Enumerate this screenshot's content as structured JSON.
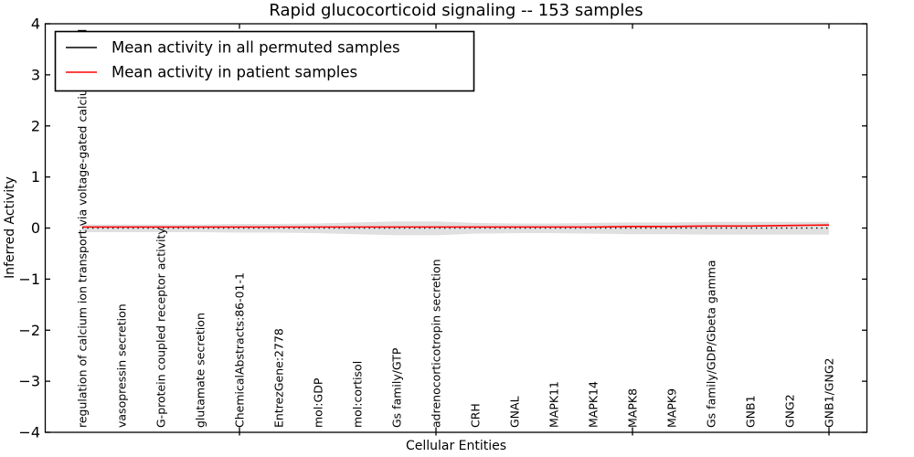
{
  "chart_data": {
    "type": "line",
    "title": "Rapid glucocorticoid signaling -- 153 samples",
    "xlabel": "Cellular Entities",
    "ylabel": "Inferred Activity",
    "ylim": [
      -4,
      4
    ],
    "y_ticks": [
      -4,
      -3,
      -2,
      -1,
      0,
      1,
      2,
      3,
      4
    ],
    "x_major_tick_indices": [
      4,
      9,
      14,
      19
    ],
    "grid": false,
    "legend_position": "upper left",
    "categories": [
      "regulation of calcium ion transport via voltage-gated calcium channel",
      "vasopressin secretion",
      "G-protein coupled receptor activity",
      "glutamate secretion",
      "ChemicalAbstracts:86-01-1",
      "EntrezGene:2778",
      "mol:GDP",
      "mol:cortisol",
      "Gs family/GTP",
      "adrenocorticotropin secretion",
      "CRH",
      "GNAL",
      "MAPK11",
      "MAPK14",
      "MAPK8",
      "MAPK9",
      "Gs family/GDP/Gbeta gamma",
      "GNB1",
      "GNG2",
      "GNB1/GNG2"
    ],
    "series": [
      {
        "name": "Mean activity in all permuted samples",
        "color": "#000000",
        "style": "dotted",
        "values": [
          0.0,
          0.0,
          0.0,
          0.0,
          0.0,
          0.0,
          0.0,
          0.0,
          0.0,
          0.0,
          0.0,
          0.0,
          0.0,
          0.0,
          0.0,
          0.0,
          0.0,
          0.0,
          0.0,
          0.0
        ]
      },
      {
        "name": "Mean activity in patient samples",
        "color": "#ff0000",
        "style": "solid",
        "values": [
          0.02,
          0.02,
          0.02,
          0.02,
          0.02,
          0.02,
          0.02,
          0.02,
          0.02,
          0.02,
          0.02,
          0.02,
          0.02,
          0.02,
          0.03,
          0.03,
          0.04,
          0.04,
          0.05,
          0.06
        ]
      }
    ],
    "band": {
      "name": "permuted activity spread",
      "color": "#bbbbbb",
      "opacity": 0.45,
      "upper": [
        0.07,
        0.07,
        0.07,
        0.07,
        0.08,
        0.08,
        0.09,
        0.11,
        0.13,
        0.13,
        0.1,
        0.09,
        0.09,
        0.1,
        0.11,
        0.11,
        0.12,
        0.12,
        0.12,
        0.12
      ],
      "lower": [
        -0.08,
        -0.08,
        -0.08,
        -0.08,
        -0.09,
        -0.09,
        -0.1,
        -0.12,
        -0.14,
        -0.14,
        -0.11,
        -0.1,
        -0.1,
        -0.11,
        -0.12,
        -0.12,
        -0.13,
        -0.13,
        -0.13,
        -0.13
      ]
    }
  }
}
